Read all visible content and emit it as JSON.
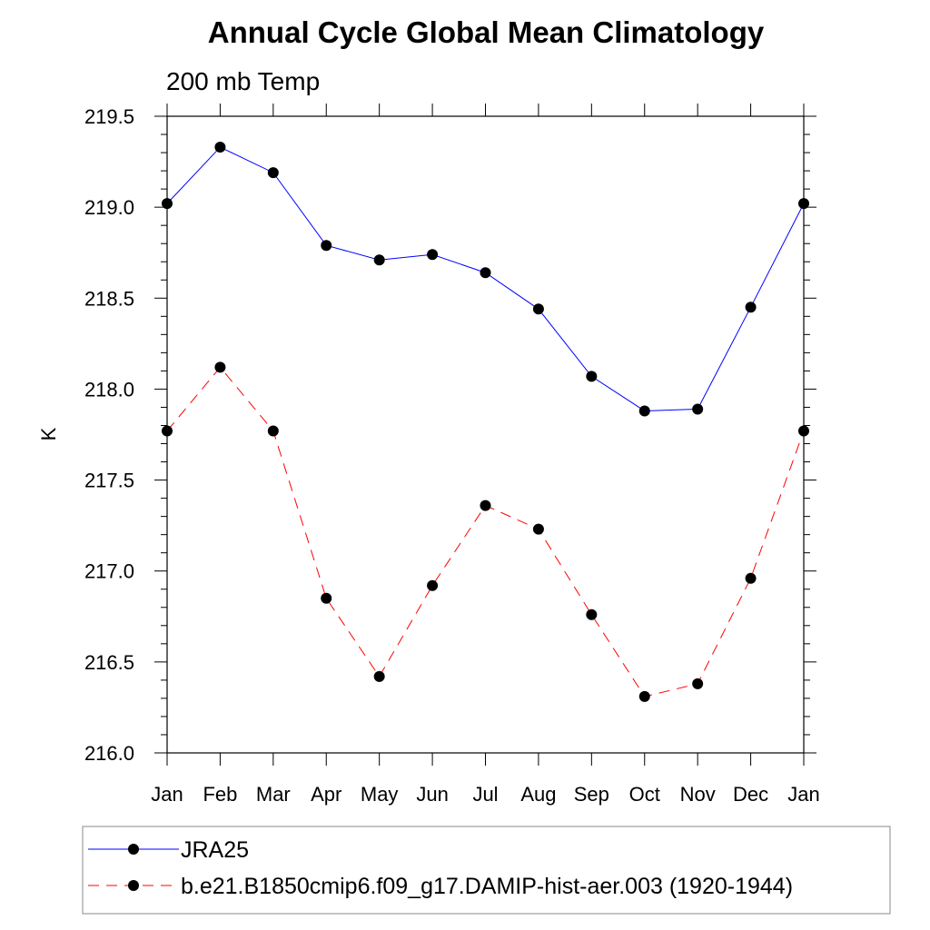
{
  "chart_data": {
    "type": "line",
    "title": "Annual Cycle Global Mean Climatology",
    "subtitle": "200 mb Temp",
    "xlabel": "",
    "ylabel": "K",
    "categories": [
      "Jan",
      "Feb",
      "Mar",
      "Apr",
      "May",
      "Jun",
      "Jul",
      "Aug",
      "Sep",
      "Oct",
      "Nov",
      "Dec",
      "Jan"
    ],
    "ylim": [
      216.0,
      219.5
    ],
    "yticks": [
      "216.0",
      "216.5",
      "217.0",
      "217.5",
      "218.0",
      "218.5",
      "219.0",
      "219.5"
    ],
    "series": [
      {
        "name": "JRA25",
        "color": "#0000ff",
        "line_style": "solid",
        "marker": "filled-circle",
        "values": [
          219.02,
          219.33,
          219.19,
          218.79,
          218.71,
          218.74,
          218.64,
          218.44,
          218.07,
          217.88,
          217.89,
          218.45,
          219.02
        ]
      },
      {
        "name": "b.e21.B1850cmip6.f09_g17.DAMIP-hist-aer.003 (1920-1944)",
        "color": "#ff0000",
        "line_style": "dashed",
        "marker": "filled-circle",
        "values": [
          217.77,
          218.12,
          217.77,
          216.85,
          216.42,
          216.92,
          217.36,
          217.23,
          216.76,
          216.31,
          216.38,
          216.96,
          217.77
        ]
      }
    ],
    "grid": false,
    "legend_position": "bottom"
  }
}
